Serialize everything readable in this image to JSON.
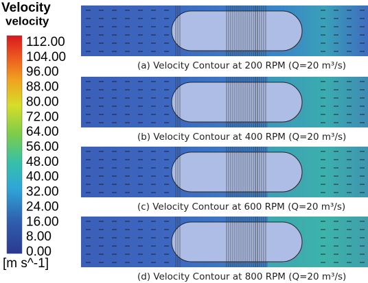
{
  "legend": {
    "title": "Velocity",
    "subtitle": "velocity",
    "labels": [
      "112.00",
      "104.00",
      "96.00",
      "88.00",
      "80.00",
      "72.00",
      "64.00",
      "56.00",
      "48.00",
      "40.00",
      "32.00",
      "24.00",
      "16.00",
      "8.00",
      "0.00"
    ],
    "unit": "[m s^-1]"
  },
  "panels": [
    {
      "caption": "(a) Velocity Contour at 200 RPM (Q=20 m³/s)"
    },
    {
      "caption": "(b) Velocity Contour at 400 RPM (Q=20 m³/s)"
    },
    {
      "caption": "(c) Velocity Contour at 600 RPM (Q=20 m³/s)"
    },
    {
      "caption": "(d) Velocity Contour at 800 RPM (Q=20 m³/s)"
    }
  ]
}
